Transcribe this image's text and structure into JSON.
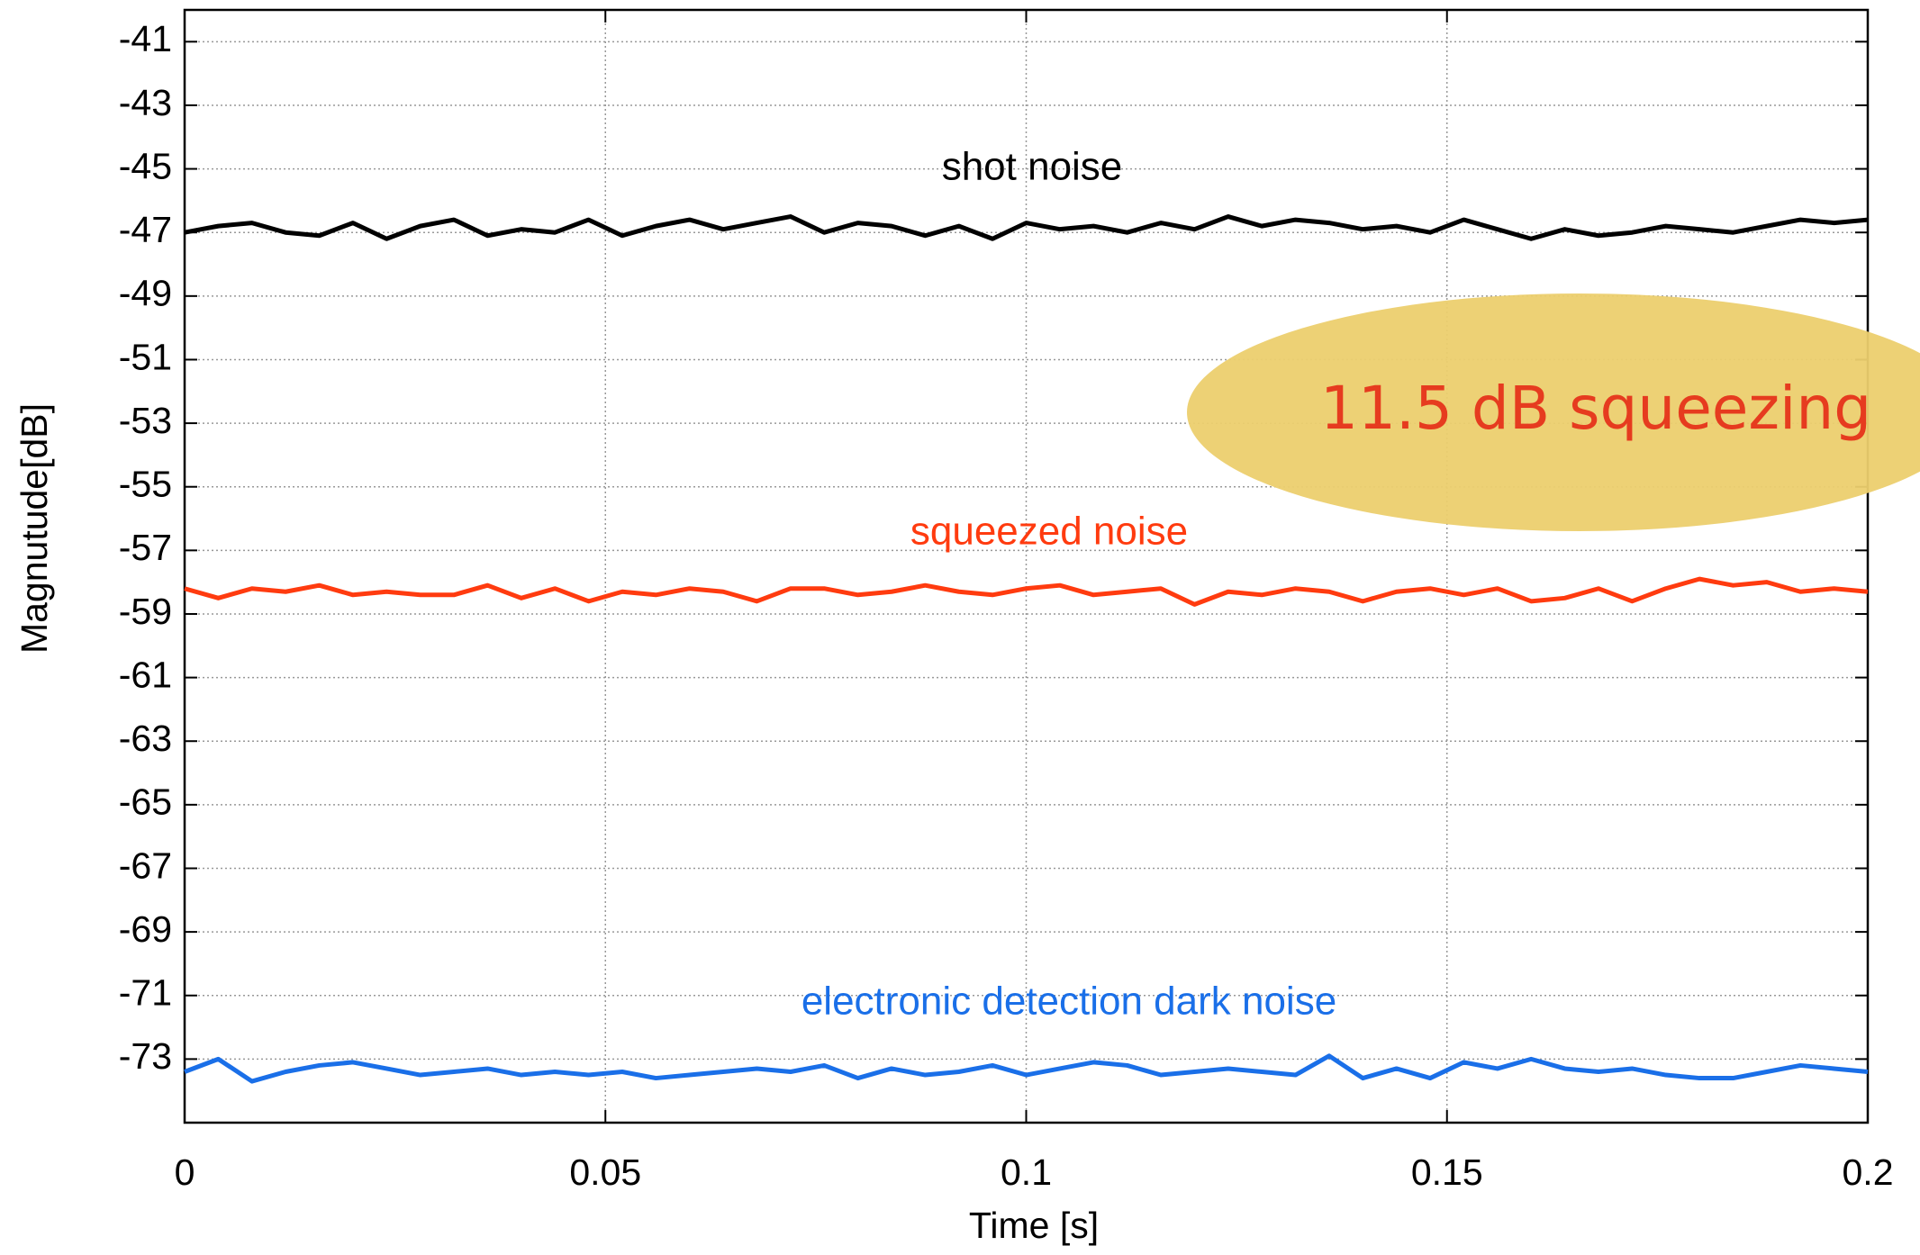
{
  "chart_data": {
    "type": "line",
    "xlabel": "Time [s]",
    "ylabel": "Magnutude[dB]",
    "x": [
      0,
      0.004,
      0.008,
      0.012,
      0.016,
      0.02,
      0.024,
      0.028,
      0.032,
      0.036,
      0.04,
      0.044,
      0.048,
      0.052,
      0.056,
      0.06,
      0.064,
      0.068,
      0.072,
      0.076,
      0.08,
      0.084,
      0.088,
      0.092,
      0.096,
      0.1,
      0.104,
      0.108,
      0.112,
      0.116,
      0.12,
      0.124,
      0.128,
      0.132,
      0.136,
      0.14,
      0.144,
      0.148,
      0.152,
      0.156,
      0.16,
      0.164,
      0.168,
      0.172,
      0.176,
      0.18,
      0.184,
      0.188,
      0.192,
      0.196,
      0.2
    ],
    "series": [
      {
        "name": "shot noise",
        "color": "#000000",
        "values": [
          -47,
          -46.8,
          -46.7,
          -47,
          -47.1,
          -46.7,
          -47.2,
          -46.8,
          -46.6,
          -47.1,
          -46.9,
          -47,
          -46.6,
          -47.1,
          -46.8,
          -46.6,
          -46.9,
          -46.7,
          -46.5,
          -47,
          -46.7,
          -46.8,
          -47.1,
          -46.8,
          -47.2,
          -46.7,
          -46.9,
          -46.8,
          -47,
          -46.7,
          -46.9,
          -46.5,
          -46.8,
          -46.6,
          -46.7,
          -46.9,
          -46.8,
          -47,
          -46.6,
          -46.9,
          -47.2,
          -46.9,
          -47.1,
          -47,
          -46.8,
          -46.9,
          -47,
          -46.8,
          -46.6,
          -46.7,
          -46.6
        ]
      },
      {
        "name": "squeezed noise",
        "color": "#ff3b0f",
        "values": [
          -58.2,
          -58.5,
          -58.2,
          -58.3,
          -58.1,
          -58.4,
          -58.3,
          -58.4,
          -58.4,
          -58.1,
          -58.5,
          -58.2,
          -58.6,
          -58.3,
          -58.4,
          -58.2,
          -58.3,
          -58.6,
          -58.2,
          -58.2,
          -58.4,
          -58.3,
          -58.1,
          -58.3,
          -58.4,
          -58.2,
          -58.1,
          -58.4,
          -58.3,
          -58.2,
          -58.7,
          -58.3,
          -58.4,
          -58.2,
          -58.3,
          -58.6,
          -58.3,
          -58.2,
          -58.4,
          -58.2,
          -58.6,
          -58.5,
          -58.2,
          -58.6,
          -58.2,
          -57.9,
          -58.1,
          -58.0,
          -58.3,
          -58.2,
          -58.3
        ]
      },
      {
        "name": "electronic detection dark noise",
        "color": "#1a6fe8",
        "values": [
          -73.4,
          -73.0,
          -73.7,
          -73.4,
          -73.2,
          -73.1,
          -73.3,
          -73.5,
          -73.4,
          -73.3,
          -73.5,
          -73.4,
          -73.5,
          -73.4,
          -73.6,
          -73.5,
          -73.4,
          -73.3,
          -73.4,
          -73.2,
          -73.6,
          -73.3,
          -73.5,
          -73.4,
          -73.2,
          -73.5,
          -73.3,
          -73.1,
          -73.2,
          -73.5,
          -73.4,
          -73.3,
          -73.4,
          -73.5,
          -72.9,
          -73.6,
          -73.3,
          -73.6,
          -73.1,
          -73.3,
          -73.0,
          -73.3,
          -73.4,
          -73.3,
          -73.5,
          -73.6,
          -73.6,
          -73.4,
          -73.2,
          -73.3,
          -73.4
        ]
      }
    ],
    "annotations": [
      "11.5 dB squeezing"
    ],
    "xlim": [
      0,
      0.2
    ],
    "xticks": [
      0,
      0.05,
      0.1,
      0.15,
      0.2
    ],
    "ylim": [
      -75,
      -40
    ],
    "yticks": [
      -41,
      -43,
      -45,
      -47,
      -49,
      -51,
      -53,
      -55,
      -57,
      -59,
      -61,
      -63,
      -65,
      -67,
      -69,
      -71,
      -73
    ],
    "grid": true
  }
}
